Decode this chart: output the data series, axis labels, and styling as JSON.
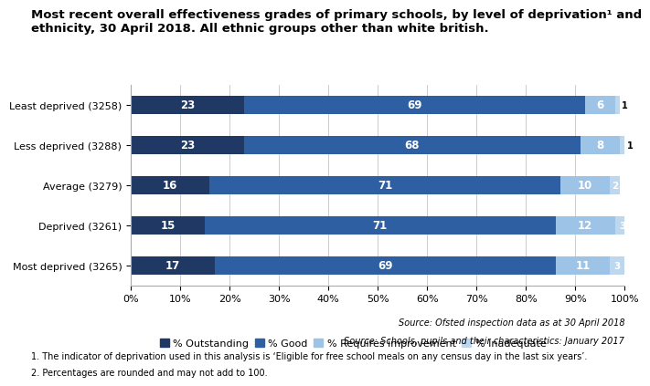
{
  "title": "Most recent overall effectiveness grades of primary schools, by level of deprivation¹ and\nethnicity, 30 April 2018. All ethnic groups other than white british.",
  "categories": [
    "Least deprived (3258)",
    "Less deprived (3288)",
    "Average (3279)",
    "Deprived (3261)",
    "Most deprived (3265)"
  ],
  "series": {
    "Outstanding": [
      23,
      23,
      16,
      15,
      17
    ],
    "Good": [
      69,
      68,
      71,
      71,
      69
    ],
    "Requires improvement": [
      6,
      8,
      10,
      12,
      11
    ],
    "Inadequate": [
      1,
      1,
      2,
      3,
      3
    ]
  },
  "colors": {
    "Outstanding": "#1F3864",
    "Good": "#2E5FA3",
    "Requires improvement": "#9DC3E6",
    "Inadequate": "#BDD7EE"
  },
  "legend_labels": [
    "% Outstanding",
    "% Good",
    "% Requires improvement",
    "% Inadequate"
  ],
  "footnote1": "Source: Ofsted inspection data as at 30 April 2018",
  "footnote2": "Source: Schools, pupils and their characteristics: January 2017",
  "footnote3": "1. The indicator of deprivation used in this analysis is ‘Eligible for free school meals on any census day in the last six years’.",
  "footnote4": "2. Percentages are rounded and may not add to 100.",
  "xlabel_ticks": [
    "0%",
    "10%",
    "20%",
    "30%",
    "40%",
    "50%",
    "60%",
    "70%",
    "80%",
    "90%",
    "100%"
  ],
  "bar_height": 0.45,
  "title_fontsize": 9.5,
  "label_fontsize": 8.5,
  "tick_fontsize": 8,
  "legend_fontsize": 8,
  "footnote_fontsize": 7
}
